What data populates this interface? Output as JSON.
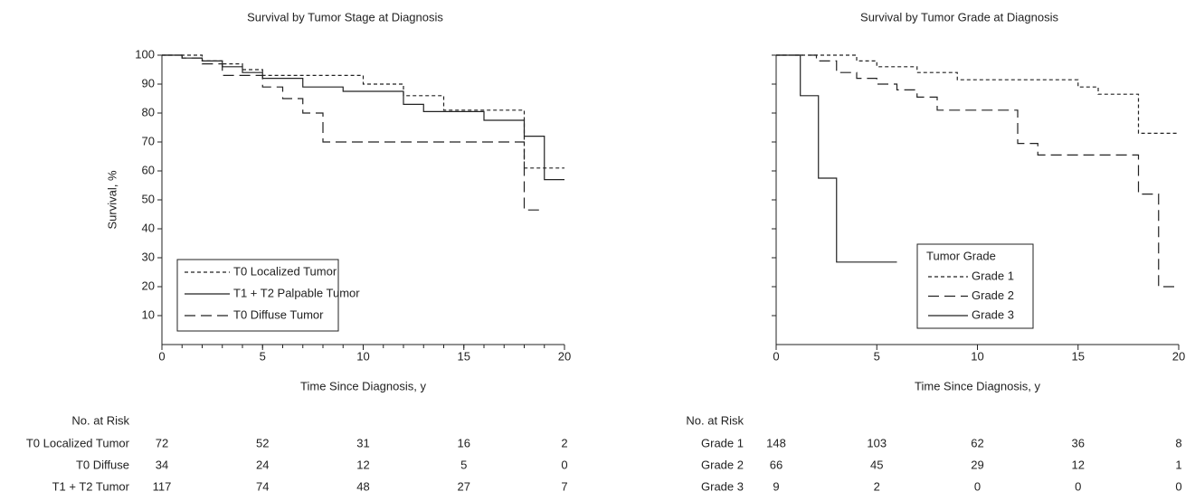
{
  "chart_data": [
    {
      "type": "line",
      "step": "post",
      "title": "Survival by Tumor Stage at Diagnosis",
      "xlabel": "Time Since Diagnosis, y",
      "ylabel": "Survival, %",
      "xlim": [
        0,
        20
      ],
      "ylim": [
        0,
        100
      ],
      "xticks": [
        0,
        5,
        10,
        15,
        20
      ],
      "yticks": [
        10,
        20,
        30,
        40,
        50,
        60,
        70,
        80,
        90,
        100
      ],
      "ytick_labels": true,
      "x_minor_step": 1,
      "legend": "lower left",
      "series": [
        {
          "name": "T0 Localized Tumor",
          "color": "#222222",
          "dash": "short",
          "x": [
            0,
            2,
            3,
            4,
            5,
            10,
            12,
            14,
            18,
            20
          ],
          "values": [
            100,
            98,
            97,
            95,
            93,
            90,
            86,
            81,
            61,
            61
          ]
        },
        {
          "name": "T1 + T2 Palpable Tumor",
          "color": "#222222",
          "dash": "solid",
          "x": [
            0,
            1,
            2,
            3,
            4,
            5,
            7,
            9,
            12,
            13,
            16,
            18,
            19,
            20
          ],
          "values": [
            100,
            99,
            98,
            96,
            94,
            92,
            89,
            87.5,
            83,
            80.5,
            77.5,
            72,
            57,
            57
          ]
        },
        {
          "name": "T0 Diffuse Tumor",
          "color": "#222222",
          "dash": "long",
          "x": [
            0,
            1,
            2,
            3,
            5,
            6,
            7,
            8,
            18,
            19
          ],
          "values": [
            100,
            99,
            97,
            93,
            89,
            85,
            80,
            70,
            46.5,
            46.5
          ]
        }
      ],
      "risk_table": {
        "title": "No. at Risk",
        "rows": [
          {
            "label": "T0 Localized Tumor",
            "values": [
              72,
              52,
              31,
              16,
              2
            ]
          },
          {
            "label": "T0 Diffuse",
            "values": [
              34,
              24,
              12,
              5,
              0
            ]
          },
          {
            "label": "T1 + T2 Tumor",
            "values": [
              117,
              74,
              48,
              27,
              7
            ]
          }
        ]
      }
    },
    {
      "type": "line",
      "step": "post",
      "title": "Survival by Tumor Grade at Diagnosis",
      "xlabel": "Time Since Diagnosis, y",
      "xlim": [
        0,
        20
      ],
      "ylim": [
        0,
        100
      ],
      "xticks": [
        0,
        5,
        10,
        15,
        20
      ],
      "yticks": [
        10,
        20,
        30,
        40,
        50,
        60,
        70,
        80,
        90,
        100
      ],
      "ytick_labels": false,
      "legend": "lower right",
      "legend_title": "Tumor Grade",
      "series": [
        {
          "name": "Grade 1",
          "color": "#222222",
          "dash": "short",
          "x": [
            0,
            4,
            5,
            7,
            9,
            15,
            16,
            18,
            20
          ],
          "values": [
            100,
            98,
            96,
            94,
            91.5,
            89,
            86.5,
            73,
            73
          ]
        },
        {
          "name": "Grade 2",
          "color": "#222222",
          "dash": "long",
          "x": [
            0,
            2,
            3,
            4,
            5,
            6,
            7,
            8,
            12,
            13,
            18,
            19,
            20
          ],
          "values": [
            100,
            98,
            94,
            92,
            90,
            88,
            85.5,
            81,
            69.5,
            65.5,
            52,
            20,
            20
          ]
        },
        {
          "name": "Grade 3",
          "color": "#222222",
          "dash": "solid",
          "x": [
            0,
            1.2,
            2.1,
            3,
            6
          ],
          "values": [
            100,
            86,
            57.5,
            28.5,
            28.5
          ]
        }
      ],
      "risk_table": {
        "title": "No. at Risk",
        "rows": [
          {
            "label": "Grade 1",
            "values": [
              148,
              103,
              62,
              36,
              8
            ]
          },
          {
            "label": "Grade 2",
            "values": [
              66,
              45,
              29,
              12,
              1
            ]
          },
          {
            "label": "Grade 3",
            "values": [
              9,
              2,
              0,
              0,
              0
            ]
          }
        ]
      }
    }
  ]
}
